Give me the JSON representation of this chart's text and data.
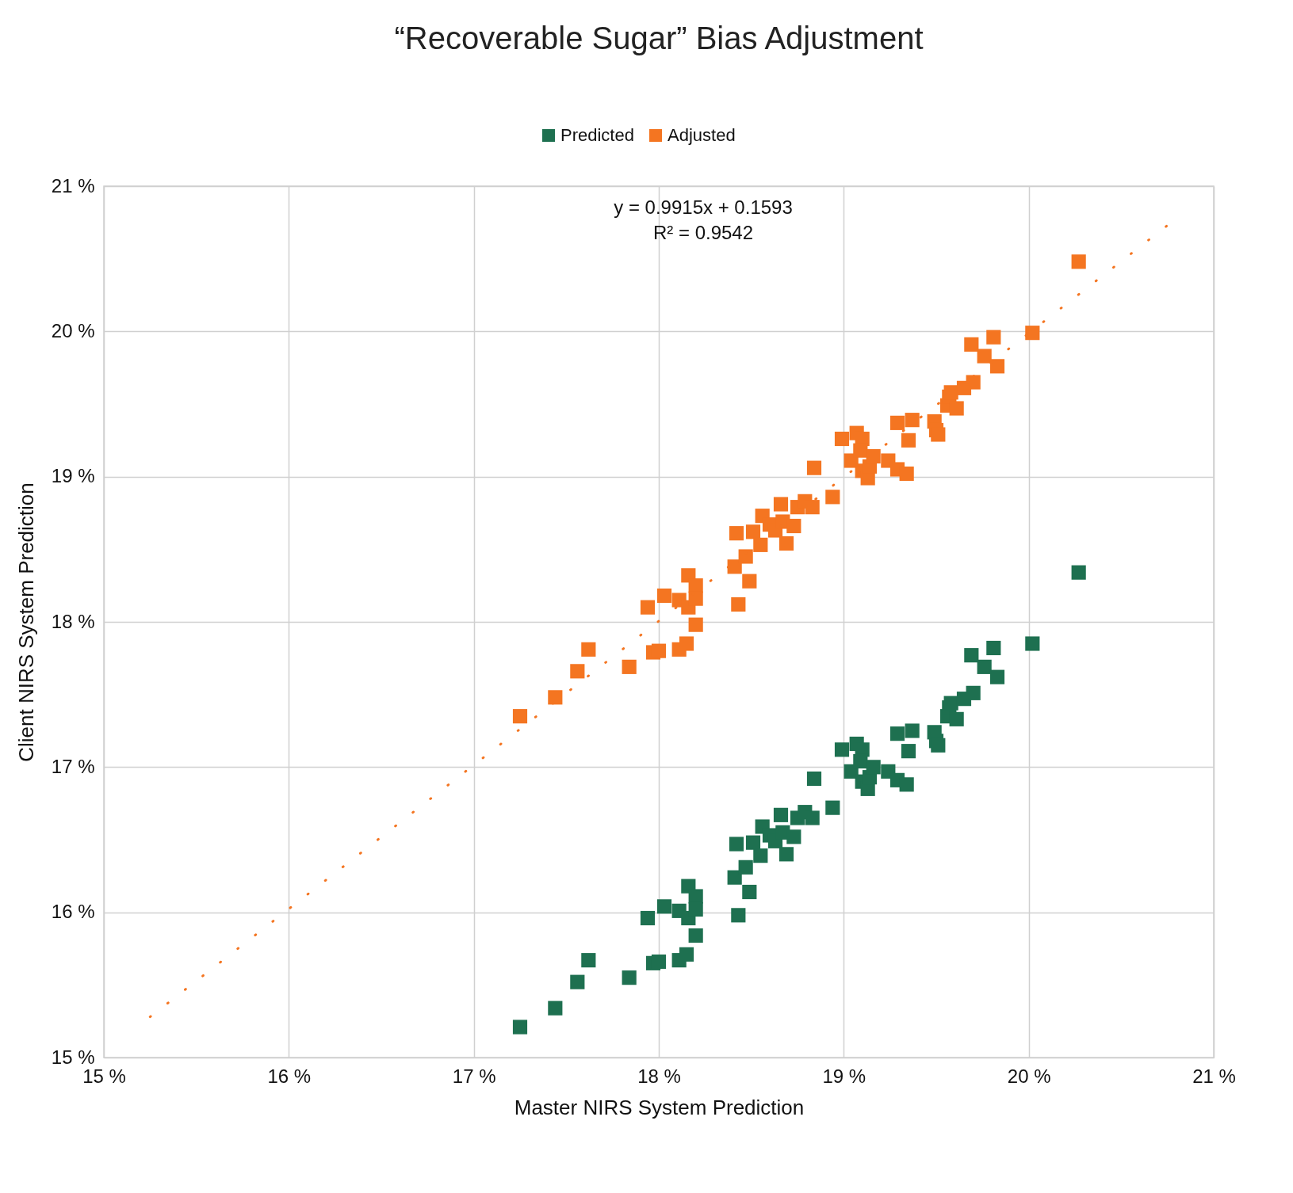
{
  "chart_data": {
    "type": "scatter",
    "title": "“Recoverable Sugar” Bias Adjustment",
    "xlabel": "Master NIRS System Prediction",
    "ylabel": "Client NIRS System Prediction",
    "annotations": [
      "y = 0.9915x + 0.1593",
      "R² = 0.9542"
    ],
    "x": [
      17.25,
      17.44,
      17.56,
      17.62,
      17.84,
      17.94,
      17.97,
      18.0,
      18.03,
      18.11,
      18.11,
      18.15,
      18.16,
      18.16,
      18.2,
      18.2,
      18.2,
      18.41,
      18.42,
      18.43,
      18.47,
      18.49,
      18.51,
      18.55,
      18.56,
      18.6,
      18.63,
      18.66,
      18.67,
      18.69,
      18.73,
      18.75,
      18.79,
      18.83,
      18.84,
      18.94,
      18.99,
      19.04,
      19.07,
      19.1,
      19.09,
      19.1,
      19.13,
      19.14,
      19.16,
      19.24,
      19.29,
      19.29,
      19.34,
      19.35,
      19.37,
      19.49,
      19.5,
      19.51,
      19.56,
      19.57,
      19.58,
      19.61,
      19.65,
      19.7,
      19.69,
      19.76,
      19.81,
      19.83,
      20.02,
      20.27
    ],
    "series": [
      {
        "name": "Predicted",
        "color": "#1e7050",
        "values": [
          15.21,
          15.34,
          15.52,
          15.67,
          15.55,
          15.96,
          15.65,
          15.66,
          16.04,
          16.01,
          15.67,
          15.71,
          15.96,
          16.18,
          16.11,
          16.02,
          15.84,
          16.24,
          16.47,
          15.98,
          16.31,
          16.14,
          16.48,
          16.39,
          16.59,
          16.53,
          16.49,
          16.67,
          16.55,
          16.4,
          16.52,
          16.65,
          16.69,
          16.65,
          16.92,
          16.72,
          17.12,
          16.97,
          17.16,
          17.12,
          17.04,
          16.9,
          16.85,
          16.93,
          17.0,
          16.97,
          17.23,
          16.91,
          16.88,
          17.11,
          17.25,
          17.24,
          17.18,
          17.15,
          17.35,
          17.41,
          17.44,
          17.33,
          17.47,
          17.51,
          17.77,
          17.69,
          17.82,
          17.62,
          17.85,
          18.34
        ]
      },
      {
        "name": "Adjusted",
        "color": "#f47521",
        "values": [
          17.35,
          17.48,
          17.66,
          17.81,
          17.69,
          18.1,
          17.79,
          17.8,
          18.18,
          18.15,
          17.81,
          17.85,
          18.1,
          18.32,
          18.25,
          18.16,
          17.98,
          18.38,
          18.61,
          18.12,
          18.45,
          18.28,
          18.62,
          18.53,
          18.73,
          18.67,
          18.63,
          18.81,
          18.69,
          18.54,
          18.66,
          18.79,
          18.83,
          18.79,
          19.06,
          18.86,
          19.26,
          19.11,
          19.3,
          19.26,
          19.18,
          19.04,
          18.99,
          19.07,
          19.14,
          19.11,
          19.37,
          19.05,
          19.02,
          19.25,
          19.39,
          19.38,
          19.32,
          19.29,
          19.49,
          19.55,
          19.58,
          19.47,
          19.61,
          19.65,
          19.91,
          19.83,
          19.96,
          19.76,
          19.99,
          20.48
        ]
      },
      {
        "type": "line",
        "color": "#f47521",
        "line_style": "dotted",
        "marker": "none",
        "x": [
          15.25,
          20.77
        ],
        "values": [
          15.28,
          20.75
        ]
      }
    ],
    "xlim": [
      15,
      21
    ],
    "ylim": [
      15,
      21
    ],
    "xticks": [
      {
        "value": 15,
        "label": "15 %"
      },
      {
        "value": 16,
        "label": "16 %"
      },
      {
        "value": 17,
        "label": "17 %"
      },
      {
        "value": 18,
        "label": "18 %"
      },
      {
        "value": 19,
        "label": "19 %"
      },
      {
        "value": 20,
        "label": "20 %"
      },
      {
        "value": 21,
        "label": "21 %"
      }
    ],
    "yticks": [
      {
        "value": 15,
        "label": "15 %"
      },
      {
        "value": 16,
        "label": "16 %"
      },
      {
        "value": 17,
        "label": "17 %"
      },
      {
        "value": 18,
        "label": "18 %"
      },
      {
        "value": 19,
        "label": "19 %"
      },
      {
        "value": 20,
        "label": "20 %"
      },
      {
        "value": 21,
        "label": "21 %"
      }
    ],
    "grid": true,
    "legend": "top",
    "marker": "square"
  }
}
